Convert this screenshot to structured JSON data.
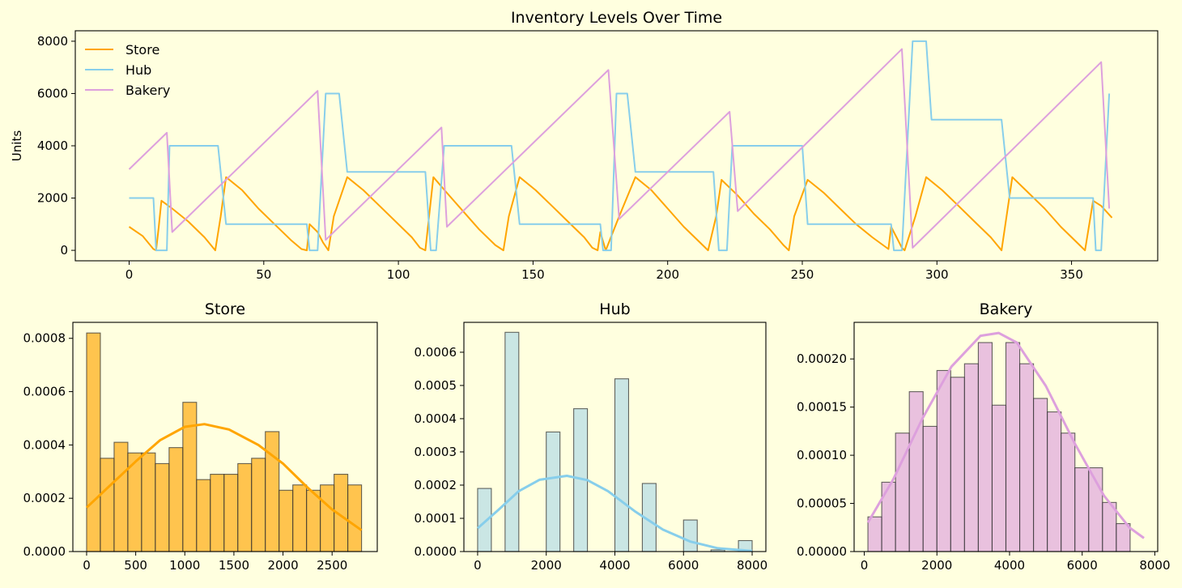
{
  "chart_data": [
    {
      "type": "line",
      "title": "Inventory Levels Over Time",
      "xlabel": "",
      "ylabel": "Units",
      "xlim": [
        -20,
        382
      ],
      "ylim": [
        -400,
        8400
      ],
      "xticks": [
        0,
        50,
        100,
        150,
        200,
        250,
        300,
        350
      ],
      "yticks": [
        0,
        2000,
        4000,
        6000,
        8000
      ],
      "legend": "top-left",
      "grid": false,
      "series": [
        {
          "name": "Store",
          "color": "#ffa500",
          "points": [
            [
              0,
              900
            ],
            [
              5,
              550
            ],
            [
              9,
              50
            ],
            [
              10,
              0
            ],
            [
              11,
              900
            ],
            [
              12,
              1900
            ],
            [
              16,
              1600
            ],
            [
              22,
              1100
            ],
            [
              28,
              500
            ],
            [
              32,
              0
            ],
            [
              34,
              1300
            ],
            [
              36,
              2800
            ],
            [
              42,
              2300
            ],
            [
              48,
              1600
            ],
            [
              54,
              1000
            ],
            [
              60,
              400
            ],
            [
              64,
              50
            ],
            [
              66,
              0
            ],
            [
              67,
              1000
            ],
            [
              70,
              700
            ],
            [
              72,
              300
            ],
            [
              74,
              0
            ],
            [
              76,
              1300
            ],
            [
              81,
              2800
            ],
            [
              87,
              2300
            ],
            [
              93,
              1700
            ],
            [
              99,
              1100
            ],
            [
              105,
              500
            ],
            [
              108,
              100
            ],
            [
              110,
              0
            ],
            [
              113,
              2800
            ],
            [
              118,
              2200
            ],
            [
              124,
              1500
            ],
            [
              130,
              800
            ],
            [
              136,
              200
            ],
            [
              139,
              0
            ],
            [
              141,
              1300
            ],
            [
              145,
              2800
            ],
            [
              151,
              2300
            ],
            [
              157,
              1700
            ],
            [
              163,
              1100
            ],
            [
              169,
              500
            ],
            [
              172,
              100
            ],
            [
              174,
              0
            ],
            [
              175,
              700
            ],
            [
              177,
              0
            ],
            [
              182,
              1300
            ],
            [
              188,
              2800
            ],
            [
              194,
              2300
            ],
            [
              200,
              1600
            ],
            [
              206,
              900
            ],
            [
              212,
              300
            ],
            [
              215,
              0
            ],
            [
              218,
              1300
            ],
            [
              220,
              2700
            ],
            [
              226,
              2100
            ],
            [
              232,
              1400
            ],
            [
              238,
              800
            ],
            [
              243,
              200
            ],
            [
              245,
              0
            ],
            [
              247,
              1300
            ],
            [
              252,
              2700
            ],
            [
              258,
              2200
            ],
            [
              264,
              1600
            ],
            [
              270,
              1000
            ],
            [
              276,
              500
            ],
            [
              282,
              50
            ],
            [
              283,
              900
            ],
            [
              285,
              500
            ],
            [
              287,
              100
            ],
            [
              288,
              0
            ],
            [
              292,
              1300
            ],
            [
              296,
              2800
            ],
            [
              302,
              2300
            ],
            [
              308,
              1700
            ],
            [
              314,
              1100
            ],
            [
              320,
              500
            ],
            [
              324,
              0
            ],
            [
              328,
              2800
            ],
            [
              334,
              2200
            ],
            [
              340,
              1600
            ],
            [
              346,
              900
            ],
            [
              352,
              300
            ],
            [
              355,
              0
            ],
            [
              358,
              1900
            ],
            [
              361,
              1700
            ],
            [
              365,
              1250
            ]
          ]
        },
        {
          "name": "Hub",
          "color": "#87ceeb",
          "points": [
            [
              0,
              2000
            ],
            [
              9,
              2000
            ],
            [
              10,
              0
            ],
            [
              14,
              0
            ],
            [
              15,
              4000
            ],
            [
              33,
              4000
            ],
            [
              36,
              1000
            ],
            [
              66,
              1000
            ],
            [
              67,
              0
            ],
            [
              70,
              0
            ],
            [
              73,
              6000
            ],
            [
              78,
              6000
            ],
            [
              81,
              3000
            ],
            [
              110,
              3000
            ],
            [
              112,
              0
            ],
            [
              114,
              0
            ],
            [
              117,
              4000
            ],
            [
              142,
              4000
            ],
            [
              145,
              1000
            ],
            [
              175,
              1000
            ],
            [
              176,
              0
            ],
            [
              179,
              0
            ],
            [
              181,
              6000
            ],
            [
              185,
              6000
            ],
            [
              188,
              3000
            ],
            [
              217,
              3000
            ],
            [
              219,
              0
            ],
            [
              222,
              0
            ],
            [
              224,
              4000
            ],
            [
              250,
              4000
            ],
            [
              252,
              1000
            ],
            [
              283,
              1000
            ],
            [
              284,
              0
            ],
            [
              287,
              0
            ],
            [
              291,
              8000
            ],
            [
              296,
              8000
            ],
            [
              298,
              5000
            ],
            [
              324,
              5000
            ],
            [
              327,
              2000
            ],
            [
              358,
              2000
            ],
            [
              359,
              0
            ],
            [
              361,
              0
            ],
            [
              364,
              6000
            ]
          ]
        },
        {
          "name": "Bakery",
          "color": "#dda0dd",
          "points": [
            [
              0,
              3100
            ],
            [
              14,
              4500
            ],
            [
              16,
              700
            ],
            [
              70,
              6100
            ],
            [
              73,
              400
            ],
            [
              116,
              4700
            ],
            [
              118,
              900
            ],
            [
              178,
              6900
            ],
            [
              182,
              1200
            ],
            [
              223,
              5300
            ],
            [
              226,
              1500
            ],
            [
              287,
              7700
            ],
            [
              291,
              100
            ],
            [
              361,
              7200
            ],
            [
              364,
              1600
            ]
          ]
        }
      ]
    },
    {
      "type": "bar",
      "title": "Store",
      "xlabel": "",
      "ylabel": "",
      "color": "#ffa500",
      "xlim": [
        -140,
        2960
      ],
      "ylim": [
        0,
        0.00086
      ],
      "xticks": [
        0,
        500,
        1000,
        1500,
        2000,
        2500
      ],
      "yticks": [
        0.0,
        0.0002,
        0.0004,
        0.0006,
        0.0008
      ],
      "bin_start": 0,
      "bin_width": 140,
      "values": [
        0.00082,
        0.00035,
        0.00041,
        0.00037,
        0.00037,
        0.00033,
        0.00039,
        0.00056,
        0.00027,
        0.00029,
        0.00029,
        0.00033,
        0.00035,
        0.00045,
        0.00023,
        0.00025,
        0.00023,
        0.00025,
        0.00029,
        0.00025
      ],
      "kde": [
        [
          0,
          0.000165
        ],
        [
          250,
          0.000252
        ],
        [
          500,
          0.000338
        ],
        [
          750,
          0.000418
        ],
        [
          1000,
          0.000468
        ],
        [
          1200,
          0.000478
        ],
        [
          1450,
          0.000458
        ],
        [
          1750,
          0.0004
        ],
        [
          2000,
          0.00033
        ],
        [
          2250,
          0.00024
        ],
        [
          2500,
          0.000158
        ],
        [
          2800,
          8e-05
        ]
      ]
    },
    {
      "type": "bar",
      "title": "Hub",
      "xlabel": "",
      "ylabel": "",
      "color": "#add8e6",
      "xlim": [
        -400,
        8400
      ],
      "ylim": [
        0,
        0.00069
      ],
      "xticks": [
        0,
        2000,
        4000,
        6000,
        8000
      ],
      "yticks": [
        0.0,
        0.0001,
        0.0002,
        0.0003,
        0.0004,
        0.0005,
        0.0006
      ],
      "bin_start": 0,
      "bin_width": 400,
      "values": [
        0.00019,
        0,
        0.00066,
        0,
        0,
        0.00036,
        0,
        0.00043,
        0,
        0,
        0.00052,
        0,
        0.000205,
        0,
        0,
        9.5e-05,
        0,
        5e-06,
        0,
        3.3e-05
      ],
      "kde": [
        [
          0,
          7e-05
        ],
        [
          600,
          0.000125
        ],
        [
          1200,
          0.000182
        ],
        [
          1800,
          0.000216
        ],
        [
          2600,
          0.000228
        ],
        [
          3200,
          0.000215
        ],
        [
          3800,
          0.000182
        ],
        [
          4600,
          0.00012
        ],
        [
          5400,
          6.6e-05
        ],
        [
          6200,
          3e-05
        ],
        [
          7000,
          1e-05
        ],
        [
          8000,
          2e-06
        ]
      ]
    },
    {
      "type": "bar",
      "title": "Bakery",
      "xlabel": "",
      "ylabel": "",
      "color": "#dda0dd",
      "xlim": [
        -280,
        8080
      ],
      "ylim": [
        0,
        0.000238
      ],
      "xticks": [
        0,
        2000,
        4000,
        6000,
        8000
      ],
      "yticks": [
        0.0,
        5e-05,
        0.0001,
        0.00015,
        0.0002
      ],
      "bin_start": 100,
      "bin_width": 380,
      "values": [
        3.6e-05,
        7.2e-05,
        0.000123,
        0.000166,
        0.00013,
        0.000188,
        0.000181,
        0.000195,
        0.000217,
        0.000152,
        0.000217,
        0.000195,
        0.000159,
        0.000145,
        0.000123,
        8.7e-05,
        8.7e-05,
        5.1e-05,
        2.9e-05
      ],
      "kde": [
        [
          100,
          3e-05
        ],
        [
          800,
          7.5e-05
        ],
        [
          1600,
          0.000138
        ],
        [
          2400,
          0.000192
        ],
        [
          3200,
          0.000224
        ],
        [
          3700,
          0.000227
        ],
        [
          4200,
          0.000217
        ],
        [
          5000,
          0.000172
        ],
        [
          5800,
          0.000112
        ],
        [
          6600,
          5.8e-05
        ],
        [
          7300,
          2.5e-05
        ],
        [
          7700,
          1.4e-05
        ]
      ]
    }
  ]
}
